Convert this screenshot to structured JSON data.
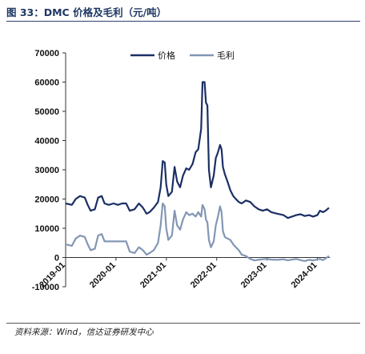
{
  "header": {
    "title": "图 33：DMC 价格及毛利（元/吨）"
  },
  "footer": {
    "source": "资料来源：Wind，信达证券研发中心"
  },
  "colors": {
    "price": "#1b2f64",
    "margin": "#8397b4"
  },
  "chart_data": {
    "type": "line",
    "title": "DMC 价格及毛利（元/吨）",
    "xlabel": "",
    "ylabel": "",
    "ylim": [
      -10000,
      70000
    ],
    "yticks": [
      -10000,
      0,
      10000,
      20000,
      30000,
      40000,
      50000,
      60000,
      70000
    ],
    "ytick_labels": [
      "-10000",
      "0",
      "10000",
      "20000",
      "30000",
      "40000",
      "50000",
      "60000",
      "70000"
    ],
    "xlim": [
      "2019-01-01",
      "2024-03-31"
    ],
    "xticks": [
      "2019-01-01",
      "2020-01-01",
      "2021-01-01",
      "2022-01-01",
      "2023-01-01",
      "2024-01-01"
    ],
    "xtick_labels": [
      "2019-01",
      "2020-01",
      "2021-01",
      "2022-01",
      "2023-01",
      "2024-01"
    ],
    "grid": false,
    "legend": "top-center",
    "series": [
      {
        "name": "价格",
        "points": [
          [
            "2019-01-01",
            18500
          ],
          [
            "2019-02-15",
            18000
          ],
          [
            "2019-03-15",
            20000
          ],
          [
            "2019-04-15",
            21000
          ],
          [
            "2019-05-20",
            20500
          ],
          [
            "2019-06-10",
            18000
          ],
          [
            "2019-07-01",
            16000
          ],
          [
            "2019-08-01",
            16500
          ],
          [
            "2019-08-25",
            20500
          ],
          [
            "2019-09-20",
            21000
          ],
          [
            "2019-10-10",
            18500
          ],
          [
            "2019-11-10",
            18000
          ],
          [
            "2019-12-15",
            18500
          ],
          [
            "2020-01-15",
            18000
          ],
          [
            "2020-02-15",
            18500
          ],
          [
            "2020-03-15",
            18500
          ],
          [
            "2020-04-10",
            16000
          ],
          [
            "2020-05-15",
            16500
          ],
          [
            "2020-06-15",
            18500
          ],
          [
            "2020-07-15",
            17000
          ],
          [
            "2020-08-10",
            15000
          ],
          [
            "2020-09-01",
            15500
          ],
          [
            "2020-10-01",
            17000
          ],
          [
            "2020-11-01",
            19000
          ],
          [
            "2020-11-20",
            24000
          ],
          [
            "2020-12-05",
            33000
          ],
          [
            "2020-12-20",
            32500
          ],
          [
            "2020-12-31",
            25000
          ],
          [
            "2021-01-15",
            21000
          ],
          [
            "2021-02-10",
            22500
          ],
          [
            "2021-03-01",
            31000
          ],
          [
            "2021-03-20",
            26000
          ],
          [
            "2021-04-10",
            24000
          ],
          [
            "2021-05-01",
            28000
          ],
          [
            "2021-05-25",
            30500
          ],
          [
            "2021-06-15",
            30000
          ],
          [
            "2021-07-10",
            32000
          ],
          [
            "2021-08-01",
            36000
          ],
          [
            "2021-08-20",
            37000
          ],
          [
            "2021-09-10",
            44000
          ],
          [
            "2021-09-20",
            60000
          ],
          [
            "2021-10-05",
            60000
          ],
          [
            "2021-10-15",
            53000
          ],
          [
            "2021-10-25",
            52000
          ],
          [
            "2021-11-05",
            30000
          ],
          [
            "2021-11-20",
            24000
          ],
          [
            "2021-12-10",
            28000
          ],
          [
            "2021-12-25",
            34000
          ],
          [
            "2022-01-10",
            36000
          ],
          [
            "2022-01-25",
            38500
          ],
          [
            "2022-02-05",
            37000
          ],
          [
            "2022-02-15",
            31000
          ],
          [
            "2022-03-01",
            28500
          ],
          [
            "2022-03-20",
            26000
          ],
          [
            "2022-04-10",
            23000
          ],
          [
            "2022-05-01",
            21000
          ],
          [
            "2022-05-20",
            20000
          ],
          [
            "2022-06-10",
            19000
          ],
          [
            "2022-07-01",
            18500
          ],
          [
            "2022-08-01",
            19500
          ],
          [
            "2022-09-01",
            19000
          ],
          [
            "2022-10-01",
            17500
          ],
          [
            "2022-11-01",
            16500
          ],
          [
            "2022-12-01",
            16000
          ],
          [
            "2023-01-01",
            16500
          ],
          [
            "2023-02-01",
            15500
          ],
          [
            "2023-03-15",
            15000
          ],
          [
            "2023-05-01",
            14500
          ],
          [
            "2023-06-01",
            13500
          ],
          [
            "2023-07-01",
            14000
          ],
          [
            "2023-08-01",
            14500
          ],
          [
            "2023-09-01",
            14800
          ],
          [
            "2023-10-01",
            14200
          ],
          [
            "2023-11-01",
            14500
          ],
          [
            "2023-12-01",
            14000
          ],
          [
            "2024-01-01",
            14500
          ],
          [
            "2024-01-20",
            16000
          ],
          [
            "2024-02-10",
            15500
          ],
          [
            "2024-03-01",
            16000
          ],
          [
            "2024-03-25",
            17000
          ]
        ]
      },
      {
        "name": "毛利",
        "points": [
          [
            "2019-01-01",
            4500
          ],
          [
            "2019-02-15",
            4000
          ],
          [
            "2019-03-15",
            6500
          ],
          [
            "2019-04-15",
            7500
          ],
          [
            "2019-05-20",
            7000
          ],
          [
            "2019-06-10",
            4500
          ],
          [
            "2019-07-01",
            2500
          ],
          [
            "2019-08-01",
            3000
          ],
          [
            "2019-08-25",
            7500
          ],
          [
            "2019-09-20",
            8000
          ],
          [
            "2019-10-10",
            5500
          ],
          [
            "2019-11-10",
            5500
          ],
          [
            "2019-12-15",
            5500
          ],
          [
            "2020-01-15",
            5500
          ],
          [
            "2020-02-15",
            5500
          ],
          [
            "2020-03-15",
            5500
          ],
          [
            "2020-04-10",
            2000
          ],
          [
            "2020-05-15",
            1500
          ],
          [
            "2020-06-15",
            3500
          ],
          [
            "2020-07-15",
            2500
          ],
          [
            "2020-08-10",
            1000
          ],
          [
            "2020-09-01",
            1500
          ],
          [
            "2020-10-01",
            2500
          ],
          [
            "2020-11-01",
            5000
          ],
          [
            "2020-11-20",
            11000
          ],
          [
            "2020-12-05",
            18500
          ],
          [
            "2020-12-20",
            17500
          ],
          [
            "2020-12-31",
            10000
          ],
          [
            "2021-01-15",
            6000
          ],
          [
            "2021-02-10",
            7500
          ],
          [
            "2021-03-01",
            16000
          ],
          [
            "2021-03-20",
            11000
          ],
          [
            "2021-04-10",
            9500
          ],
          [
            "2021-05-01",
            13000
          ],
          [
            "2021-05-25",
            15500
          ],
          [
            "2021-06-15",
            14500
          ],
          [
            "2021-07-10",
            15000
          ],
          [
            "2021-08-01",
            14000
          ],
          [
            "2021-08-20",
            15500
          ],
          [
            "2021-09-10",
            14000
          ],
          [
            "2021-09-20",
            18000
          ],
          [
            "2021-10-05",
            16500
          ],
          [
            "2021-10-15",
            13000
          ],
          [
            "2021-10-25",
            12000
          ],
          [
            "2021-11-05",
            6000
          ],
          [
            "2021-11-20",
            3500
          ],
          [
            "2021-12-10",
            5500
          ],
          [
            "2021-12-25",
            11000
          ],
          [
            "2022-01-10",
            14000
          ],
          [
            "2022-01-25",
            17500
          ],
          [
            "2022-02-05",
            15500
          ],
          [
            "2022-02-15",
            9000
          ],
          [
            "2022-03-01",
            7000
          ],
          [
            "2022-03-20",
            6500
          ],
          [
            "2022-04-10",
            6000
          ],
          [
            "2022-05-01",
            4500
          ],
          [
            "2022-05-20",
            3500
          ],
          [
            "2022-06-10",
            2500
          ],
          [
            "2022-07-01",
            1000
          ],
          [
            "2022-08-01",
            500
          ],
          [
            "2022-09-01",
            -500
          ],
          [
            "2022-10-01",
            -1000
          ],
          [
            "2022-11-01",
            -800
          ],
          [
            "2022-12-01",
            -600
          ],
          [
            "2023-01-01",
            -500
          ],
          [
            "2023-02-01",
            -700
          ],
          [
            "2023-03-15",
            -800
          ],
          [
            "2023-05-01",
            -600
          ],
          [
            "2023-06-01",
            -1000
          ],
          [
            "2023-07-01",
            -700
          ],
          [
            "2023-08-01",
            -500
          ],
          [
            "2023-09-01",
            -900
          ],
          [
            "2023-10-01",
            -1200
          ],
          [
            "2023-11-01",
            -800
          ],
          [
            "2023-12-01",
            -1000
          ],
          [
            "2024-01-01",
            -700
          ],
          [
            "2024-01-20",
            -500
          ],
          [
            "2024-02-10",
            -900
          ],
          [
            "2024-03-01",
            -300
          ],
          [
            "2024-03-25",
            500
          ]
        ]
      }
    ]
  }
}
